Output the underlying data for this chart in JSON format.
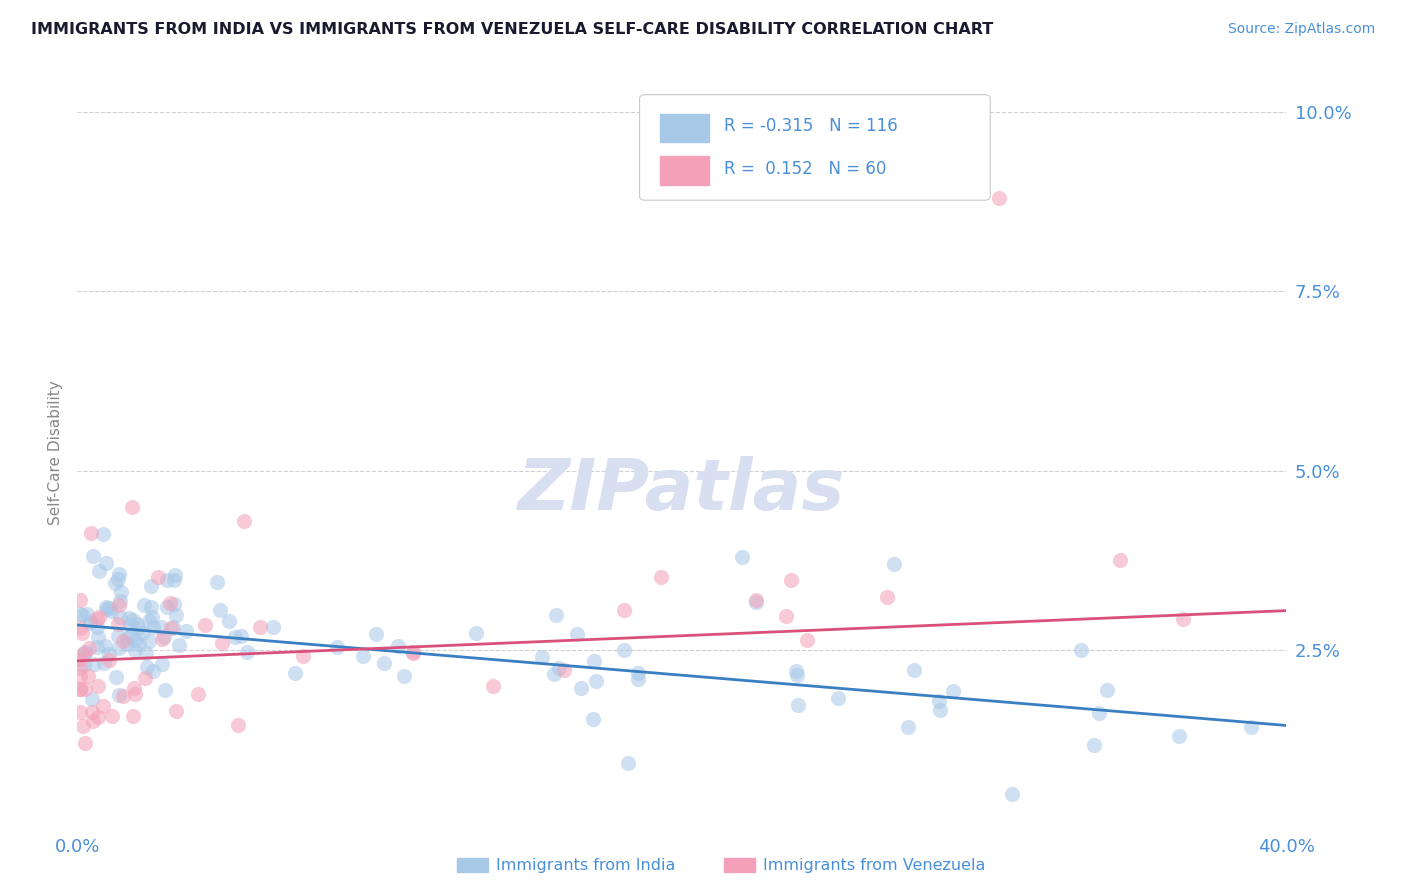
{
  "title": "IMMIGRANTS FROM INDIA VS IMMIGRANTS FROM VENEZUELA SELF-CARE DISABILITY CORRELATION CHART",
  "source": "Source: ZipAtlas.com",
  "ylabel": "Self-Care Disability",
  "yticks": [
    "10.0%",
    "7.5%",
    "5.0%",
    "2.5%"
  ],
  "ytick_vals": [
    0.1,
    0.075,
    0.05,
    0.025
  ],
  "xlim": [
    0.0,
    0.4
  ],
  "ylim": [
    0.0,
    0.105
  ],
  "india_R": -0.315,
  "india_N": 116,
  "venezuela_R": 0.152,
  "venezuela_N": 60,
  "india_color": "#a8c8e8",
  "venezuela_color": "#f4a0b8",
  "india_line_color": "#3a7fc1",
  "venezuela_line_color": "#d9507a",
  "background_color": "#ffffff",
  "legend_india_label": "Immigrants from India",
  "legend_venezuela_label": "Immigrants from Venezuela",
  "india_line_x0": 0.0,
  "india_line_y0": 0.0285,
  "india_line_x1": 0.4,
  "india_line_y1": 0.0145,
  "venezuela_line_x0": 0.0,
  "venezuela_line_y0": 0.0235,
  "venezuela_line_x1": 0.4,
  "venezuela_line_y1": 0.0305,
  "watermark_text": "ZIPatlas",
  "watermark_color": "#d8dff0",
  "dot_size": 120,
  "dot_alpha": 0.55,
  "grid_color": "#d0d0d0",
  "tick_color": "#4a90d9",
  "ylabel_color": "#888888",
  "title_color": "#1a1a2e",
  "legend_text_color": "#4a90d9",
  "legend_r_color": "#4a90d9",
  "source_color": "#4a90d9"
}
